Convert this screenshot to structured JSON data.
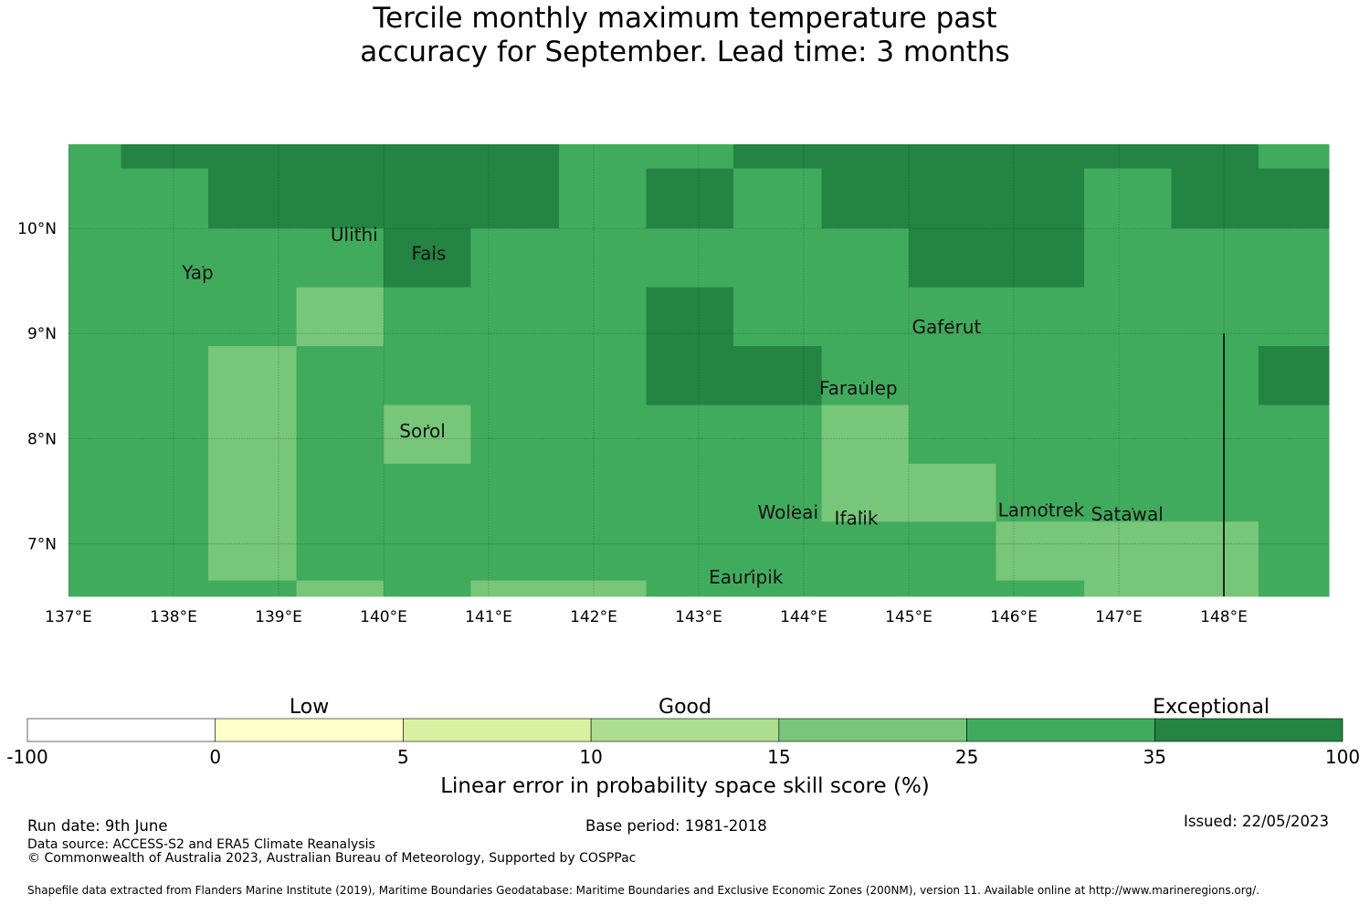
{
  "title": {
    "line1": "Tercile monthly maximum temperature past",
    "line2": "accuracy for September. Lead time: 3 months"
  },
  "colors": {
    "c1": "#ffffcc",
    "c2": "#d9f0a3",
    "c3": "#addd8e",
    "c4": "#78c679",
    "c5": "#41ab5d",
    "c6": "#238443"
  },
  "map": {
    "lon_range": [
      137,
      149
    ],
    "lat_range": [
      6.5,
      10.8
    ],
    "x_ticks": [
      {
        "value": 137,
        "label": "137°E"
      },
      {
        "value": 138,
        "label": "138°E"
      },
      {
        "value": 139,
        "label": "139°E"
      },
      {
        "value": 140,
        "label": "140°E"
      },
      {
        "value": 141,
        "label": "141°E"
      },
      {
        "value": 142,
        "label": "142°E"
      },
      {
        "value": 143,
        "label": "143°E"
      },
      {
        "value": 144,
        "label": "144°E"
      },
      {
        "value": 145,
        "label": "145°E"
      },
      {
        "value": 146,
        "label": "146°E"
      },
      {
        "value": 147,
        "label": "147°E"
      },
      {
        "value": 148,
        "label": "148°E"
      }
    ],
    "y_ticks": [
      {
        "value": 10,
        "label": "10°N"
      },
      {
        "value": 9,
        "label": "9°N"
      },
      {
        "value": 8,
        "label": "8°N"
      },
      {
        "value": 7,
        "label": "7°N"
      }
    ],
    "places": [
      {
        "name": "Yap",
        "lon": 138.23,
        "lat": 9.52
      },
      {
        "name": "Ulithi",
        "lon": 139.72,
        "lat": 9.88
      },
      {
        "name": "Fais",
        "lon": 140.43,
        "lat": 9.7
      },
      {
        "name": "Gaferut",
        "lon": 145.36,
        "lat": 9.0
      },
      {
        "name": "Faraulep",
        "lon": 144.52,
        "lat": 8.42
      },
      {
        "name": "Sorol",
        "lon": 140.37,
        "lat": 8.01
      },
      {
        "name": "Woleai",
        "lon": 143.85,
        "lat": 7.24
      },
      {
        "name": "Ifalik",
        "lon": 144.5,
        "lat": 7.18
      },
      {
        "name": "Lamotrek",
        "lon": 146.26,
        "lat": 7.26
      },
      {
        "name": "Satawal",
        "lon": 147.08,
        "lat": 7.22
      },
      {
        "name": "Eauripik",
        "lon": 143.45,
        "lat": 6.62
      }
    ],
    "zones": [
      {
        "lon0": 137.0,
        "lat0": 10.57,
        "lon1": 137.5,
        "lat1": 10.8,
        "cls": "c5"
      },
      {
        "lon0": 137.5,
        "lat0": 10.57,
        "lon1": 141.67,
        "lat1": 10.8,
        "cls": "c6"
      },
      {
        "lon0": 141.67,
        "lat0": 10.57,
        "lon1": 143.33,
        "lat1": 10.8,
        "cls": "c5"
      },
      {
        "lon0": 143.33,
        "lat0": 10.57,
        "lon1": 148.33,
        "lat1": 10.8,
        "cls": "c6"
      },
      {
        "lon0": 148.33,
        "lat0": 10.57,
        "lon1": 149.0,
        "lat1": 10.8,
        "cls": "c5"
      },
      {
        "lon0": 137.0,
        "lat0": 10.0,
        "lon1": 138.33,
        "lat1": 10.57,
        "cls": "c5"
      },
      {
        "lon0": 138.33,
        "lat0": 10.0,
        "lon1": 141.67,
        "lat1": 10.57,
        "cls": "c6"
      },
      {
        "lon0": 141.67,
        "lat0": 10.0,
        "lon1": 142.5,
        "lat1": 10.57,
        "cls": "c5"
      },
      {
        "lon0": 142.5,
        "lat0": 10.0,
        "lon1": 143.33,
        "lat1": 10.57,
        "cls": "c6"
      },
      {
        "lon0": 143.33,
        "lat0": 10.0,
        "lon1": 144.17,
        "lat1": 10.57,
        "cls": "c5"
      },
      {
        "lon0": 144.17,
        "lat0": 10.0,
        "lon1": 146.67,
        "lat1": 10.57,
        "cls": "c6"
      },
      {
        "lon0": 146.67,
        "lat0": 10.0,
        "lon1": 147.5,
        "lat1": 10.57,
        "cls": "c5"
      },
      {
        "lon0": 147.5,
        "lat0": 10.0,
        "lon1": 149.0,
        "lat1": 10.57,
        "cls": "c6"
      },
      {
        "lon0": 137.0,
        "lat0": 9.44,
        "lon1": 140.0,
        "lat1": 10.0,
        "cls": "c5"
      },
      {
        "lon0": 140.0,
        "lat0": 9.44,
        "lon1": 140.83,
        "lat1": 10.0,
        "cls": "c6"
      },
      {
        "lon0": 140.83,
        "lat0": 9.44,
        "lon1": 145.0,
        "lat1": 10.0,
        "cls": "c5"
      },
      {
        "lon0": 145.0,
        "lat0": 9.44,
        "lon1": 146.67,
        "lat1": 10.0,
        "cls": "c6"
      },
      {
        "lon0": 146.67,
        "lat0": 9.44,
        "lon1": 149.0,
        "lat1": 10.0,
        "cls": "c5"
      },
      {
        "lon0": 137.0,
        "lat0": 8.88,
        "lon1": 139.17,
        "lat1": 9.44,
        "cls": "c5"
      },
      {
        "lon0": 139.17,
        "lat0": 8.88,
        "lon1": 140.0,
        "lat1": 9.44,
        "cls": "c4"
      },
      {
        "lon0": 140.0,
        "lat0": 8.88,
        "lon1": 142.5,
        "lat1": 9.44,
        "cls": "c5"
      },
      {
        "lon0": 142.5,
        "lat0": 8.88,
        "lon1": 143.33,
        "lat1": 9.44,
        "cls": "c6"
      },
      {
        "lon0": 143.33,
        "lat0": 8.88,
        "lon1": 149.0,
        "lat1": 9.44,
        "cls": "c5"
      },
      {
        "lon0": 137.0,
        "lat0": 8.32,
        "lon1": 138.33,
        "lat1": 8.88,
        "cls": "c5"
      },
      {
        "lon0": 138.33,
        "lat0": 8.32,
        "lon1": 139.17,
        "lat1": 8.88,
        "cls": "c4"
      },
      {
        "lon0": 139.17,
        "lat0": 8.32,
        "lon1": 142.5,
        "lat1": 8.88,
        "cls": "c5"
      },
      {
        "lon0": 142.5,
        "lat0": 8.32,
        "lon1": 144.17,
        "lat1": 8.88,
        "cls": "c6"
      },
      {
        "lon0": 144.17,
        "lat0": 8.32,
        "lon1": 148.33,
        "lat1": 8.88,
        "cls": "c5"
      },
      {
        "lon0": 148.33,
        "lat0": 8.32,
        "lon1": 149.0,
        "lat1": 8.88,
        "cls": "c6"
      },
      {
        "lon0": 137.0,
        "lat0": 7.76,
        "lon1": 138.33,
        "lat1": 8.32,
        "cls": "c5"
      },
      {
        "lon0": 138.33,
        "lat0": 7.76,
        "lon1": 139.17,
        "lat1": 8.32,
        "cls": "c4"
      },
      {
        "lon0": 139.17,
        "lat0": 7.76,
        "lon1": 140.0,
        "lat1": 8.32,
        "cls": "c5"
      },
      {
        "lon0": 140.0,
        "lat0": 7.76,
        "lon1": 140.83,
        "lat1": 8.32,
        "cls": "c4"
      },
      {
        "lon0": 140.83,
        "lat0": 7.76,
        "lon1": 144.17,
        "lat1": 8.32,
        "cls": "c5"
      },
      {
        "lon0": 144.17,
        "lat0": 7.76,
        "lon1": 145.0,
        "lat1": 8.32,
        "cls": "c4"
      },
      {
        "lon0": 145.0,
        "lat0": 7.76,
        "lon1": 149.0,
        "lat1": 8.32,
        "cls": "c5"
      },
      {
        "lon0": 137.0,
        "lat0": 7.21,
        "lon1": 138.33,
        "lat1": 7.76,
        "cls": "c5"
      },
      {
        "lon0": 138.33,
        "lat0": 7.21,
        "lon1": 139.17,
        "lat1": 7.76,
        "cls": "c4"
      },
      {
        "lon0": 139.17,
        "lat0": 7.21,
        "lon1": 144.17,
        "lat1": 7.76,
        "cls": "c5"
      },
      {
        "lon0": 144.17,
        "lat0": 7.21,
        "lon1": 145.83,
        "lat1": 7.76,
        "cls": "c4"
      },
      {
        "lon0": 145.83,
        "lat0": 7.21,
        "lon1": 149.0,
        "lat1": 7.76,
        "cls": "c5"
      },
      {
        "lon0": 137.0,
        "lat0": 6.65,
        "lon1": 138.33,
        "lat1": 7.21,
        "cls": "c5"
      },
      {
        "lon0": 138.33,
        "lat0": 6.65,
        "lon1": 139.17,
        "lat1": 7.21,
        "cls": "c4"
      },
      {
        "lon0": 139.17,
        "lat0": 6.65,
        "lon1": 145.83,
        "lat1": 7.21,
        "cls": "c5"
      },
      {
        "lon0": 145.83,
        "lat0": 6.65,
        "lon1": 148.33,
        "lat1": 7.21,
        "cls": "c4"
      },
      {
        "lon0": 148.33,
        "lat0": 6.65,
        "lon1": 149.0,
        "lat1": 7.21,
        "cls": "c5"
      },
      {
        "lon0": 137.0,
        "lat0": 6.5,
        "lon1": 139.17,
        "lat1": 6.65,
        "cls": "c5"
      },
      {
        "lon0": 139.17,
        "lat0": 6.5,
        "lon1": 140.0,
        "lat1": 6.65,
        "cls": "c4"
      },
      {
        "lon0": 140.0,
        "lat0": 6.5,
        "lon1": 140.83,
        "lat1": 6.65,
        "cls": "c5"
      },
      {
        "lon0": 140.83,
        "lat0": 6.5,
        "lon1": 142.5,
        "lat1": 6.65,
        "cls": "c4"
      },
      {
        "lon0": 142.5,
        "lat0": 6.5,
        "lon1": 146.67,
        "lat1": 6.65,
        "cls": "c5"
      },
      {
        "lon0": 146.67,
        "lat0": 6.5,
        "lon1": 148.33,
        "lat1": 6.65,
        "cls": "c4"
      },
      {
        "lon0": 148.33,
        "lat0": 6.5,
        "lon1": 149.0,
        "lat1": 6.65,
        "cls": "c5"
      }
    ]
  },
  "legend": {
    "categories": [
      {
        "label": "Low",
        "position": 1.5
      },
      {
        "label": "Good",
        "position": 3.5
      },
      {
        "label": "Exceptional",
        "position": 6.3
      }
    ],
    "bins": [
      {
        "color": "#ffffff"
      },
      {
        "color": "#ffffcc"
      },
      {
        "color": "#d9f0a3"
      },
      {
        "color": "#addd8e"
      },
      {
        "color": "#78c679"
      },
      {
        "color": "#41ab5d"
      },
      {
        "color": "#238443"
      }
    ],
    "tick_labels": [
      "-100",
      "0",
      "5",
      "10",
      "15",
      "25",
      "35",
      "100"
    ],
    "axis_label": "Linear error in probability space skill score (%)"
  },
  "footer": {
    "run_date": "Run date: 9th June",
    "base_period": "Base period: 1981-2018",
    "issued": "Issued: 22/05/2023",
    "data_source": "Data source: ACCESS-S2 and ERA5 Climate Reanalysis",
    "copyright": "© Commonwealth of Australia 2023, Australian Bureau of Meteorology, Supported by COSPPac",
    "shapefile": "Shapefile data extracted from Flanders Marine Institute (2019), Maritime Boundaries Geodatabase: Maritime Boundaries and Exclusive Economic Zones (200NM), version 11. Available online at http://www.marineregions.org/."
  }
}
